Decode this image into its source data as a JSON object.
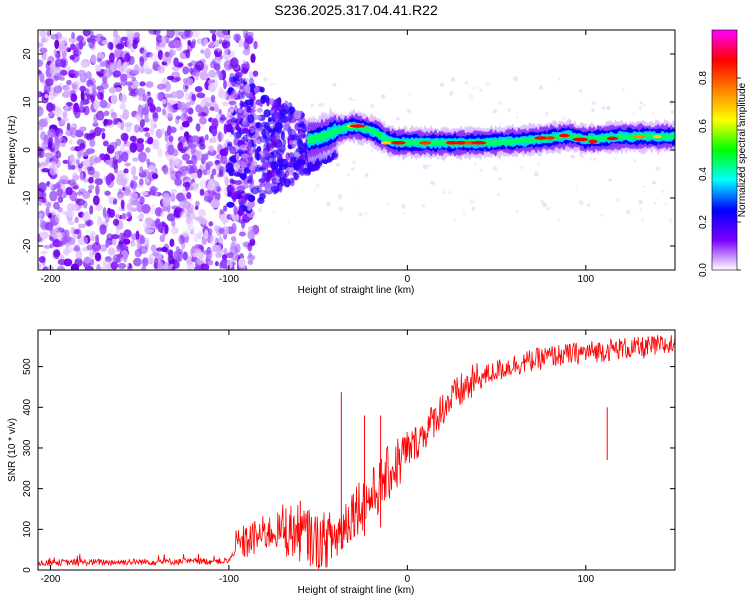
{
  "title": "S236.2025.317.04.41.R22",
  "chart_data": [
    {
      "type": "heatmap",
      "xlabel": "Height of straight line (km)",
      "ylabel": "Frequency (Hz)",
      "xlim": [
        -207,
        150
      ],
      "ylim": [
        -25,
        25
      ],
      "xticks": [
        -200,
        -100,
        0,
        100
      ],
      "yticks": [
        -20,
        -10,
        0,
        10,
        20
      ],
      "colorbar": {
        "label": "Normalized spectral amplitude",
        "range": [
          0,
          1
        ],
        "ticks": [
          "0.0",
          "0.2",
          "0.4",
          "0.6",
          "0.8"
        ],
        "colormap": [
          "#ffffff",
          "#7a00ff",
          "#0000ff",
          "#00ffff",
          "#00ff00",
          "#ffff00",
          "#ff8000",
          "#ff0000",
          "#ff00ff"
        ]
      },
      "ridge": {
        "x": [
          -60,
          -45,
          -40,
          -35,
          -30,
          -25,
          -20,
          -15,
          -10,
          -5,
          0,
          10,
          20,
          40,
          60,
          80,
          90,
          100,
          110,
          120,
          150
        ],
        "frequency": [
          1.5,
          3,
          4,
          4.5,
          5,
          4.5,
          4,
          3,
          2,
          1.5,
          1.5,
          1.5,
          1.5,
          1.5,
          1.8,
          2.5,
          3,
          2.2,
          2.5,
          2.8,
          2.8
        ]
      },
      "noise_region": [
        -207,
        -95
      ]
    },
    {
      "type": "line",
      "xlabel": "Height of straight line (km)",
      "ylabel": "SNR (10 * v/v)",
      "xlim": [
        -207,
        150
      ],
      "ylim": [
        0,
        590
      ],
      "xticks": [
        -200,
        -100,
        0,
        100
      ],
      "yticks": [
        0,
        100,
        200,
        300,
        400,
        500
      ],
      "series": [
        {
          "name": "SNR",
          "color": "#ff0000",
          "x": [
            -207,
            -150,
            -100,
            -95,
            -90,
            -80,
            -70,
            -60,
            -50,
            -40,
            -30,
            -20,
            -10,
            0,
            10,
            20,
            30,
            40,
            50,
            60,
            70,
            80,
            90,
            100,
            110,
            120,
            130,
            140,
            150
          ],
          "y": [
            18,
            20,
            22,
            60,
            70,
            90,
            100,
            90,
            70,
            80,
            150,
            180,
            240,
            290,
            340,
            400,
            440,
            470,
            490,
            505,
            515,
            525,
            530,
            535,
            540,
            545,
            545,
            550,
            555
          ]
        }
      ],
      "spikes": [
        {
          "x": -60,
          "y": 170
        },
        {
          "x": -56,
          "y": 145
        },
        {
          "x": -37,
          "y": 437
        },
        {
          "x": -24,
          "y": 380
        },
        {
          "x": -15,
          "y": 380
        },
        {
          "x": 112,
          "y": 400
        }
      ]
    }
  ]
}
